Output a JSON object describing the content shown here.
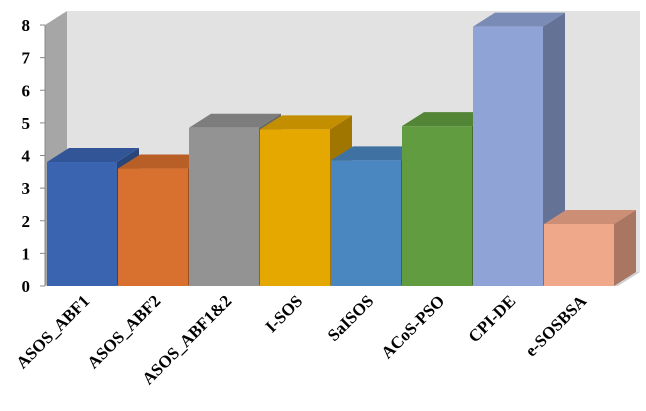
{
  "chart_data": {
    "type": "bar3d",
    "categories": [
      "ASOS_ABF1",
      "ASOS_ABF2",
      "ASOS_ABF1&2",
      "I-SOS",
      "SaISOS",
      "ACoS-PSO",
      "CPI-DE",
      "e-SOSBSA"
    ],
    "values": [
      3.8,
      3.6,
      4.85,
      4.8,
      3.85,
      4.9,
      7.95,
      1.9
    ],
    "colors": [
      "#3a64b0",
      "#d8702f",
      "#939393",
      "#e5a800",
      "#4a86c0",
      "#629c40",
      "#8fa3d6",
      "#f0a88a"
    ],
    "ylim": [
      0,
      8
    ],
    "yticks": [
      0,
      1,
      2,
      3,
      4,
      5,
      6,
      7,
      8
    ]
  }
}
